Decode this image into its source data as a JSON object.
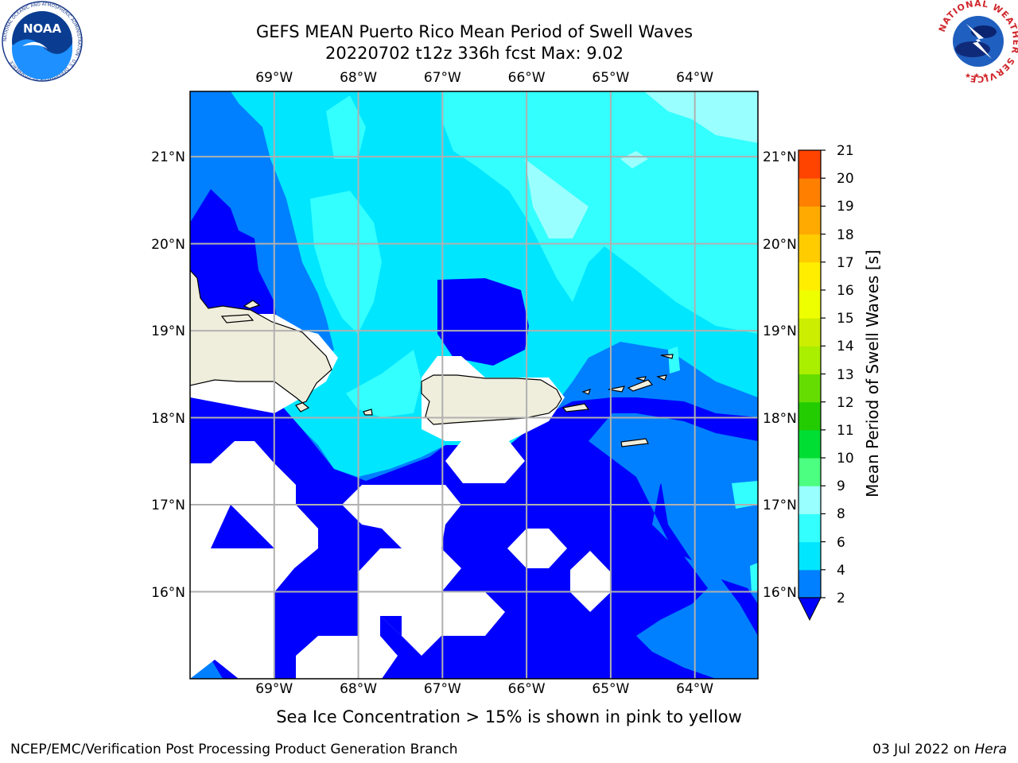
{
  "title": {
    "line1": "GEFS MEAN Puerto Rico Mean Period of Swell Waves",
    "line2": "20220702 t12z 336h fcst   Max: 9.02"
  },
  "map": {
    "lon_labels": [
      "69°W",
      "68°W",
      "67°W",
      "66°W",
      "65°W",
      "64°W"
    ],
    "lat_labels": [
      "21°N",
      "20°N",
      "19°N",
      "18°N",
      "17°N",
      "16°N"
    ],
    "lon_values": [
      -69,
      -68,
      -67,
      -66,
      -65,
      -64
    ],
    "lat_values": [
      21,
      20,
      19,
      18,
      17,
      16
    ],
    "extent": {
      "lon_min": -70,
      "lon_max": -63.25,
      "lat_min": 15,
      "lat_max": 21.75
    },
    "projection": "plate carree",
    "grid": true,
    "land_color": "#efeedd",
    "no_data_color": "#ffffff"
  },
  "colorbar": {
    "label": "Mean Period of Swell Waves [s]",
    "ticks": [
      "21",
      "20",
      "19",
      "18",
      "17",
      "16",
      "15",
      "14",
      "13",
      "12",
      "11",
      "10",
      "9",
      "8",
      "6",
      "4",
      "2"
    ],
    "levels": [
      2,
      4,
      6,
      8,
      9,
      10,
      11,
      12,
      13,
      14,
      15,
      16,
      17,
      18,
      19,
      20,
      21
    ],
    "colors": [
      "#0080ff",
      "#00e6ff",
      "#33ffff",
      "#99ffff",
      "#4dff80",
      "#00dd33",
      "#22cc00",
      "#66dd00",
      "#aaee00",
      "#ccee00",
      "#eeff00",
      "#ffee00",
      "#ffcc00",
      "#ffaa00",
      "#ff8000",
      "#ff4400",
      "#ff0000"
    ],
    "under_color": "#0000ff",
    "extend": "min"
  },
  "note": "Sea Ice Concentration > 15% is shown in pink to yellow",
  "footer": {
    "left": "NCEP/EMC/Verification Post Processing Product Generation Branch",
    "right_date": "03 Jul 2022 on ",
    "right_host": "Hera"
  },
  "logos": {
    "left": "NOAA",
    "left_ring": "NATIONAL OCEANIC AND ATMOSPHERIC ADMINISTRATION · U.S. DEPARTMENT OF COMMERCE",
    "right_ring": "NATIONAL WEATHER SERVICE"
  },
  "chart_data": {
    "type": "heatmap",
    "title": "GEFS MEAN Puerto Rico Mean Period of Swell Waves",
    "subtitle": "20220702 t12z 336h fcst   Max: 9.02",
    "max": 9.02,
    "units": "s",
    "colorbar_label": "Mean Period of Swell Waves [s]",
    "xlabel": "",
    "ylabel": "",
    "x_ticks": [
      "69°W",
      "68°W",
      "67°W",
      "66°W",
      "65°W",
      "64°W"
    ],
    "y_ticks": [
      "21°N",
      "20°N",
      "19°N",
      "18°N",
      "17°N",
      "16°N"
    ]
  }
}
